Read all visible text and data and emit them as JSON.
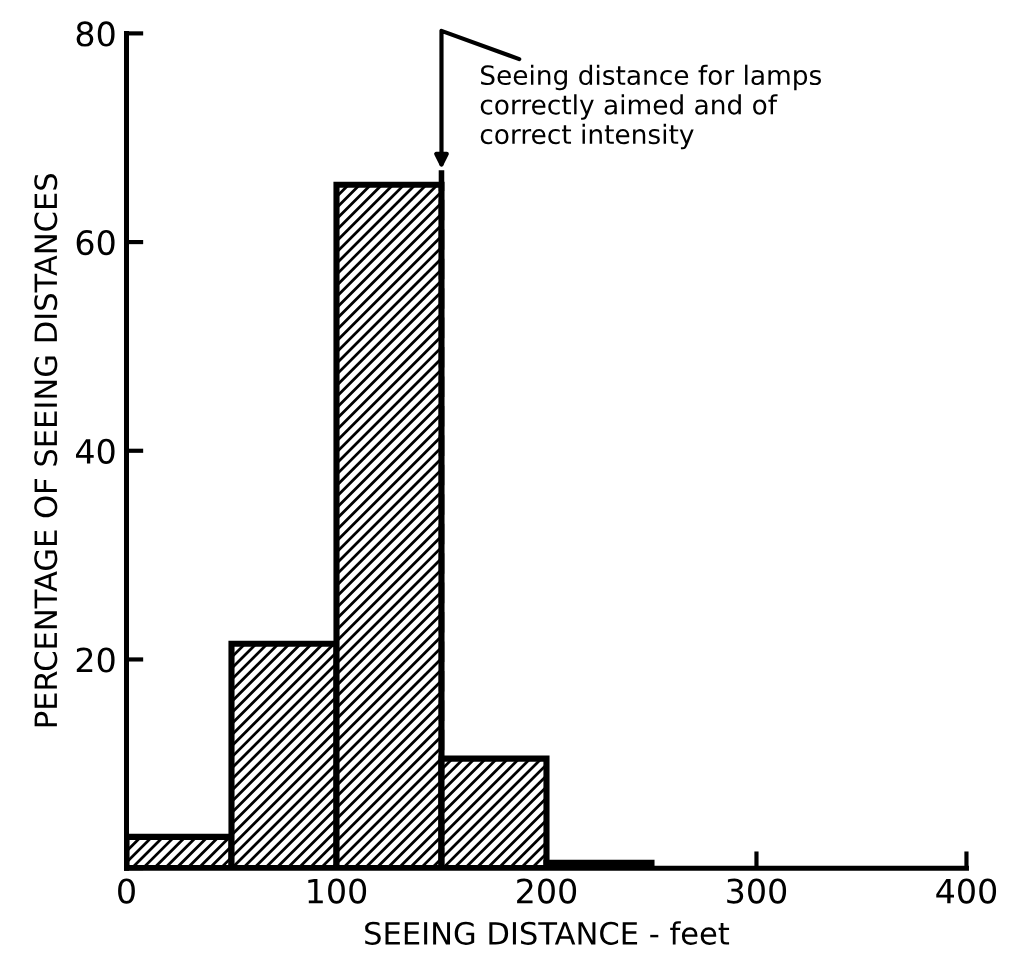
{
  "chart_data": {
    "type": "histogram",
    "xlabel": "SEEING DISTANCE - feet",
    "ylabel": "PERCENTAGE OF SEEING DISTANCES",
    "bins": [
      0,
      50,
      100,
      150,
      200,
      250
    ],
    "values": [
      3,
      21.5,
      65.5,
      10.5,
      0.5
    ],
    "color": "#000000",
    "xlim": [
      0,
      400
    ],
    "xticks": [
      0,
      100,
      200,
      300,
      400
    ],
    "ylim": [
      0,
      80
    ],
    "yticks": [
      {
        "value": 0,
        "label": null
      },
      20,
      40,
      60,
      80
    ],
    "grid": false,
    "legend": false,
    "ref_lines": [
      {
        "axis": "x",
        "value": 150,
        "line_style": "dashed",
        "color": "#000000"
      }
    ],
    "annotations": [
      {
        "text": "Seeing distance for lamps\ncorrectly aimed and of\ncorrect intensity",
        "x": 150,
        "y": 67
      }
    ]
  }
}
